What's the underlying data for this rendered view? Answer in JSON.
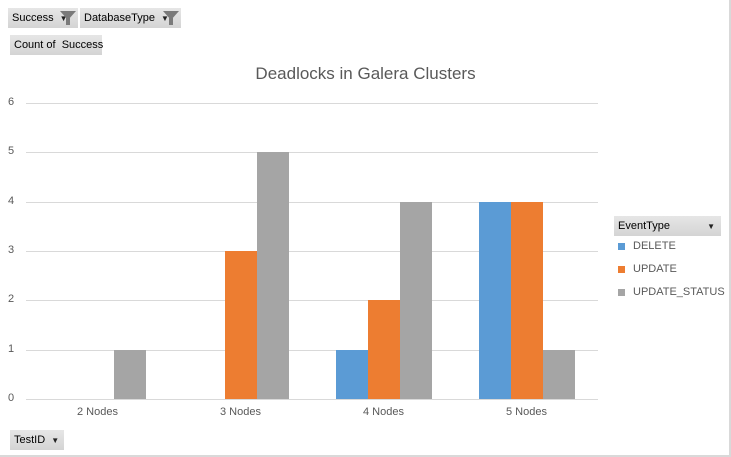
{
  "filters": {
    "success_label": "Success",
    "database_type_label": "DatabaseType",
    "value_field_label": "Count of  Success",
    "axis_field_label": "TestID"
  },
  "legend": {
    "header": "EventType",
    "items": [
      {
        "label": "DELETE",
        "color": "#5b9bd5"
      },
      {
        "label": "UPDATE",
        "color": "#ed7d31"
      },
      {
        "label": "UPDATE_STATUS",
        "color": "#a5a5a5"
      }
    ]
  },
  "icons": {
    "filter": "funnel-icon",
    "dropdown": "caret-down-icon"
  },
  "chart_data": {
    "type": "bar",
    "title": "Deadlocks in Galera Clusters",
    "categories": [
      "2 Nodes",
      "3 Nodes",
      "4 Nodes",
      "5 Nodes"
    ],
    "series": [
      {
        "name": "DELETE",
        "values": [
          0,
          0,
          1,
          4
        ],
        "color": "#5b9bd5"
      },
      {
        "name": "UPDATE",
        "values": [
          0,
          3,
          2,
          4
        ],
        "color": "#ed7d31"
      },
      {
        "name": "UPDATE_STATUS",
        "values": [
          1,
          5,
          4,
          1
        ],
        "color": "#a5a5a5"
      }
    ],
    "xlabel": "",
    "ylabel": "",
    "ylim": [
      0,
      6
    ],
    "yticks": [
      "0",
      "1",
      "2",
      "3",
      "4",
      "5",
      "6"
    ],
    "grid": true,
    "legend_position": "right"
  }
}
